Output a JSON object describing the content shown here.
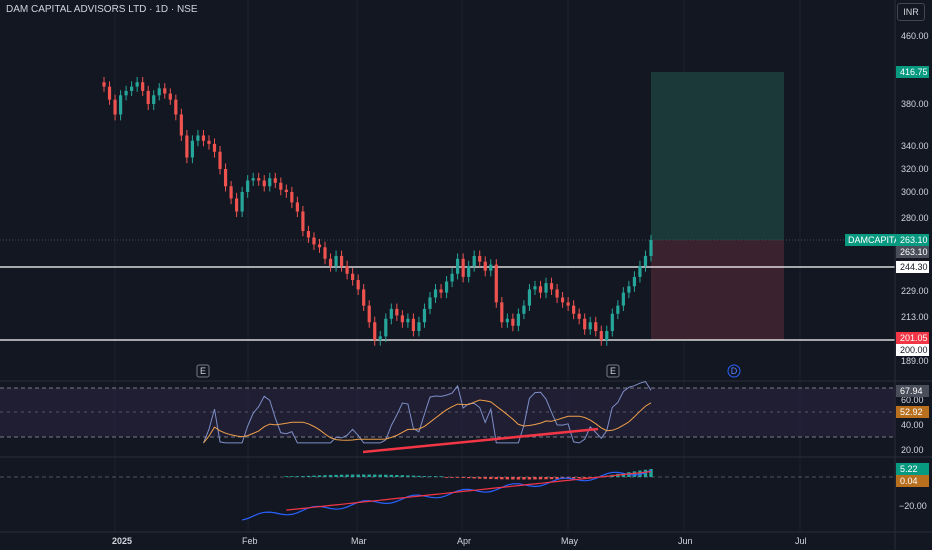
{
  "header": {
    "title": "DAM CAPITAL ADVISORS LTD · 1D · NSE",
    "currency": "INR"
  },
  "colors": {
    "background": "#131722",
    "up": "#26a69a",
    "down": "#ef5350",
    "grid": "#1e222d",
    "text": "#d1d4dc"
  },
  "price_axis": {
    "ticks": [
      "460.00",
      "380.00",
      "340.00",
      "320.00",
      "300.00",
      "280.00",
      "229.00",
      "213.00",
      "189.00"
    ],
    "labels": {
      "target": "416.75",
      "symbol": "DAMCAPITAL",
      "last": "263.10",
      "last_alt": "263.10",
      "line_upper": "244.30",
      "stop": "201.05",
      "line_lower": "200.00"
    }
  },
  "rsi_axis": {
    "ticks": [
      "60.00",
      "40.00",
      "20.00"
    ],
    "value": "67.94",
    "ma_value": "52.92"
  },
  "macd_axis": {
    "values": [
      "5.22",
      "0.04"
    ],
    "tick": "−20.00"
  },
  "time_axis": {
    "labels": [
      "2025",
      "Feb",
      "Mar",
      "Apr",
      "May",
      "Jun",
      "Jul"
    ]
  },
  "events": {
    "earnings": "E",
    "dividend": "D"
  },
  "chart_data": {
    "type": "candlestick",
    "title": "DAM CAPITAL ADVISORS LTD · 1D · NSE",
    "currency": "INR",
    "x_range": [
      "2024-12-27",
      "2025-07-10"
    ],
    "closes": [
      400,
      385,
      370,
      390,
      395,
      400,
      405,
      395,
      380,
      390,
      398,
      392,
      385,
      370,
      350,
      330,
      345,
      350,
      345,
      342,
      335,
      320,
      305,
      295,
      285,
      300,
      310,
      312,
      310,
      305,
      312,
      308,
      302,
      300,
      292,
      285,
      270,
      265,
      260,
      258,
      250,
      245,
      252,
      245,
      240,
      236,
      230,
      220,
      210,
      200,
      202,
      212,
      218,
      214,
      210,
      212,
      205,
      210,
      218,
      225,
      230,
      228,
      235,
      240,
      250,
      238,
      245,
      252,
      248,
      242,
      246,
      222,
      210,
      212,
      208,
      215,
      220,
      230,
      232,
      228,
      234,
      230,
      225,
      222,
      220,
      215,
      212,
      206,
      210,
      205,
      200,
      205,
      215,
      220,
      228,
      232,
      238,
      245,
      252,
      263.1
    ],
    "levels": {
      "upper_line": 244.3,
      "lower_line": 200.0,
      "target": 416.75,
      "stop": 201.05,
      "last": 263.1
    },
    "rsi": {
      "last": 67.94,
      "ma": 52.92
    },
    "macd": {
      "histogram": 5.22,
      "signal": 0.04
    }
  }
}
